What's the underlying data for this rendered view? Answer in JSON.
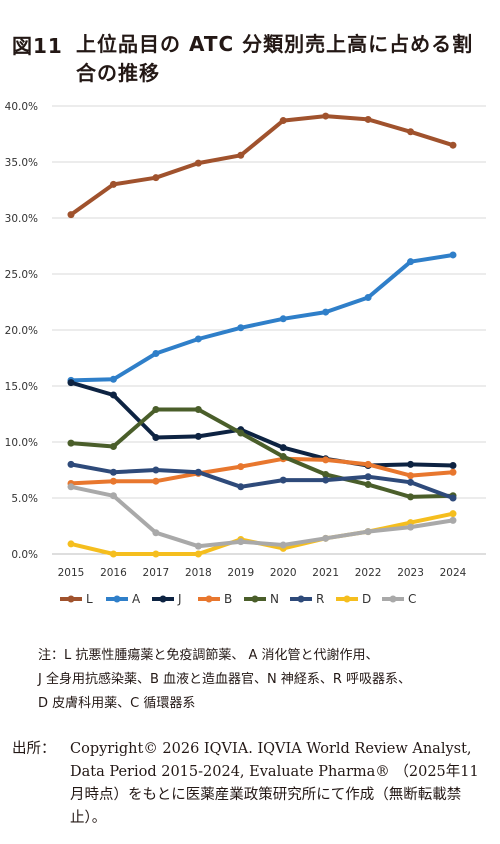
{
  "figure": {
    "label": "図11",
    "title": "上位品目の ATC 分類別売上高に占める割合の推移"
  },
  "chart_data": {
    "type": "line",
    "x": [
      2015,
      2016,
      2017,
      2018,
      2019,
      2020,
      2021,
      2022,
      2023,
      2024
    ],
    "y_ticks": [
      "0.0%",
      "5.0%",
      "10.0%",
      "15.0%",
      "20.0%",
      "25.0%",
      "30.0%",
      "35.0%",
      "40.0%"
    ],
    "ylim": [
      0,
      40
    ],
    "unit": "%",
    "grid": "horizontal",
    "legend_position": "bottom",
    "series": [
      {
        "name": "L",
        "color": "#A0522D",
        "values": [
          30.3,
          33.0,
          33.6,
          34.9,
          35.6,
          38.7,
          39.1,
          38.8,
          37.7,
          36.5
        ]
      },
      {
        "name": "A",
        "color": "#2F7FC9",
        "values": [
          15.5,
          15.6,
          17.9,
          19.2,
          20.2,
          21.0,
          21.6,
          22.9,
          26.1,
          26.7
        ]
      },
      {
        "name": "J",
        "color": "#0D2342",
        "values": [
          15.3,
          14.2,
          10.4,
          10.5,
          11.1,
          9.5,
          8.5,
          7.9,
          8.0,
          7.9
        ]
      },
      {
        "name": "B",
        "color": "#E8772E",
        "values": [
          6.3,
          6.5,
          6.5,
          7.2,
          7.8,
          8.5,
          8.4,
          8.0,
          7.0,
          7.3
        ]
      },
      {
        "name": "N",
        "color": "#4A5E2A",
        "values": [
          9.9,
          9.6,
          12.9,
          12.9,
          10.8,
          8.7,
          7.1,
          6.2,
          5.1,
          5.2
        ]
      },
      {
        "name": "R",
        "color": "#2E4A7A",
        "values": [
          8.0,
          7.3,
          7.5,
          7.3,
          6.0,
          6.6,
          6.6,
          6.9,
          6.4,
          5.0
        ]
      },
      {
        "name": "D",
        "color": "#F5BE1E",
        "values": [
          0.9,
          0.0,
          0.0,
          0.0,
          1.3,
          0.5,
          1.4,
          2.0,
          2.8,
          3.6
        ]
      },
      {
        "name": "C",
        "color": "#A9A9A9",
        "values": [
          6.0,
          5.2,
          1.9,
          0.7,
          1.1,
          0.8,
          1.4,
          2.0,
          2.4,
          3.0
        ]
      }
    ]
  },
  "notes": [
    "注：L 抗悪性腫瘍薬と免疫調節薬、 A 消化管と代謝作用、",
    "J 全身用抗感染薬、B 血液と造血器官、N 神経系、R 呼吸器系、",
    "D 皮膚科用薬、C 循環器系"
  ],
  "source": {
    "label": "出所：",
    "text": "Copyright© 2026 IQVIA. IQVIA World Review Analyst, Data Period 2015-2024, Evaluate Pharma® （2025年11月時点）をもとに医薬産業政策研究所にて作成（無断転載禁止）。"
  }
}
